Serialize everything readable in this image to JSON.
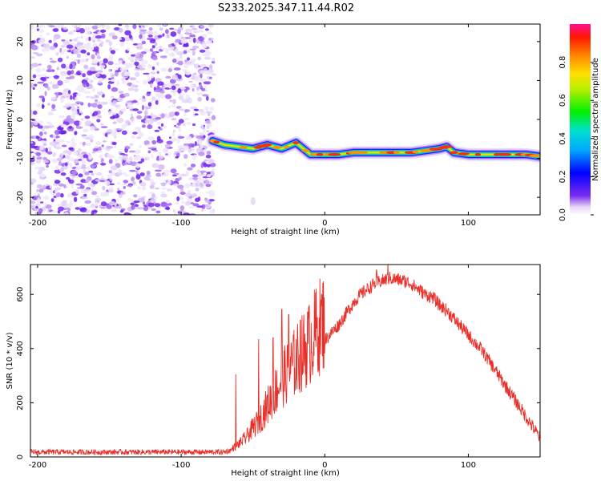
{
  "title": "S233.2025.347.11.44.R02",
  "chart_data": [
    {
      "type": "heatmap",
      "name": "spectrogram",
      "xlabel": "Height of straight line (km)",
      "ylabel": "Frequency (Hz)",
      "xlim": [
        -205,
        150
      ],
      "ylim": [
        -24.5,
        24.5
      ],
      "xticks": [
        -200,
        -100,
        0,
        100
      ],
      "yticks": [
        -20,
        -10,
        0,
        10,
        20
      ],
      "colorbar": {
        "label": "Normalized spectral amplitude",
        "range": [
          0,
          1
        ],
        "ticks": [
          0.0,
          0.2,
          0.4,
          0.6,
          0.8
        ]
      },
      "noise_region_x": [
        -205,
        -75
      ],
      "ridge": {
        "x": [
          -78,
          -70,
          -60,
          -50,
          -40,
          -30,
          -20,
          -10,
          0,
          10,
          20,
          30,
          40,
          50,
          60,
          70,
          80,
          85,
          90,
          100,
          110,
          120,
          130,
          140,
          150
        ],
        "freq_hz": [
          -5.5,
          -6.5,
          -7.0,
          -7.5,
          -6.5,
          -7.5,
          -6.0,
          -9.0,
          -9.0,
          -9.0,
          -8.5,
          -8.5,
          -8.5,
          -8.5,
          -8.5,
          -8.0,
          -7.5,
          -7.0,
          -8.5,
          -9.0,
          -9.0,
          -9.0,
          -9.0,
          -9.0,
          -9.5
        ]
      }
    },
    {
      "type": "line",
      "name": "snr",
      "xlabel": "Height of straight line (km)",
      "ylabel": "SNR (10 * v/v)",
      "xlim": [
        -205,
        150
      ],
      "ylim": [
        0,
        710
      ],
      "xticks": [
        -200,
        -100,
        0,
        100
      ],
      "yticks": [
        0,
        200,
        400,
        600
      ],
      "series": [
        {
          "name": "SNR",
          "color": "#e8302a",
          "x": [
            -205,
            -190,
            -170,
            -150,
            -130,
            -110,
            -90,
            -70,
            -65,
            -60,
            -55,
            -50,
            -45,
            -40,
            -35,
            -30,
            -25,
            -20,
            -15,
            -10,
            -5,
            0,
            5,
            10,
            15,
            20,
            25,
            30,
            35,
            40,
            45,
            50,
            55,
            60,
            65,
            70,
            75,
            80,
            85,
            90,
            95,
            100,
            105,
            110,
            115,
            120,
            125,
            130,
            135,
            140,
            145,
            150
          ],
          "values": [
            18,
            18,
            18,
            18,
            18,
            18,
            18,
            18,
            25,
            40,
            60,
            90,
            120,
            160,
            200,
            240,
            270,
            300,
            330,
            360,
            400,
            430,
            460,
            490,
            530,
            570,
            600,
            620,
            640,
            650,
            660,
            655,
            650,
            640,
            620,
            600,
            590,
            560,
            540,
            510,
            480,
            450,
            420,
            390,
            350,
            310,
            270,
            230,
            190,
            150,
            110,
            70
          ],
          "peaks_x": [
            -62,
            -46,
            -36,
            -30,
            -25,
            -17,
            -12,
            36,
            44
          ],
          "peaks_y": [
            305,
            435,
            440,
            545,
            525,
            505,
            535,
            690,
            715
          ]
        }
      ]
    }
  ]
}
